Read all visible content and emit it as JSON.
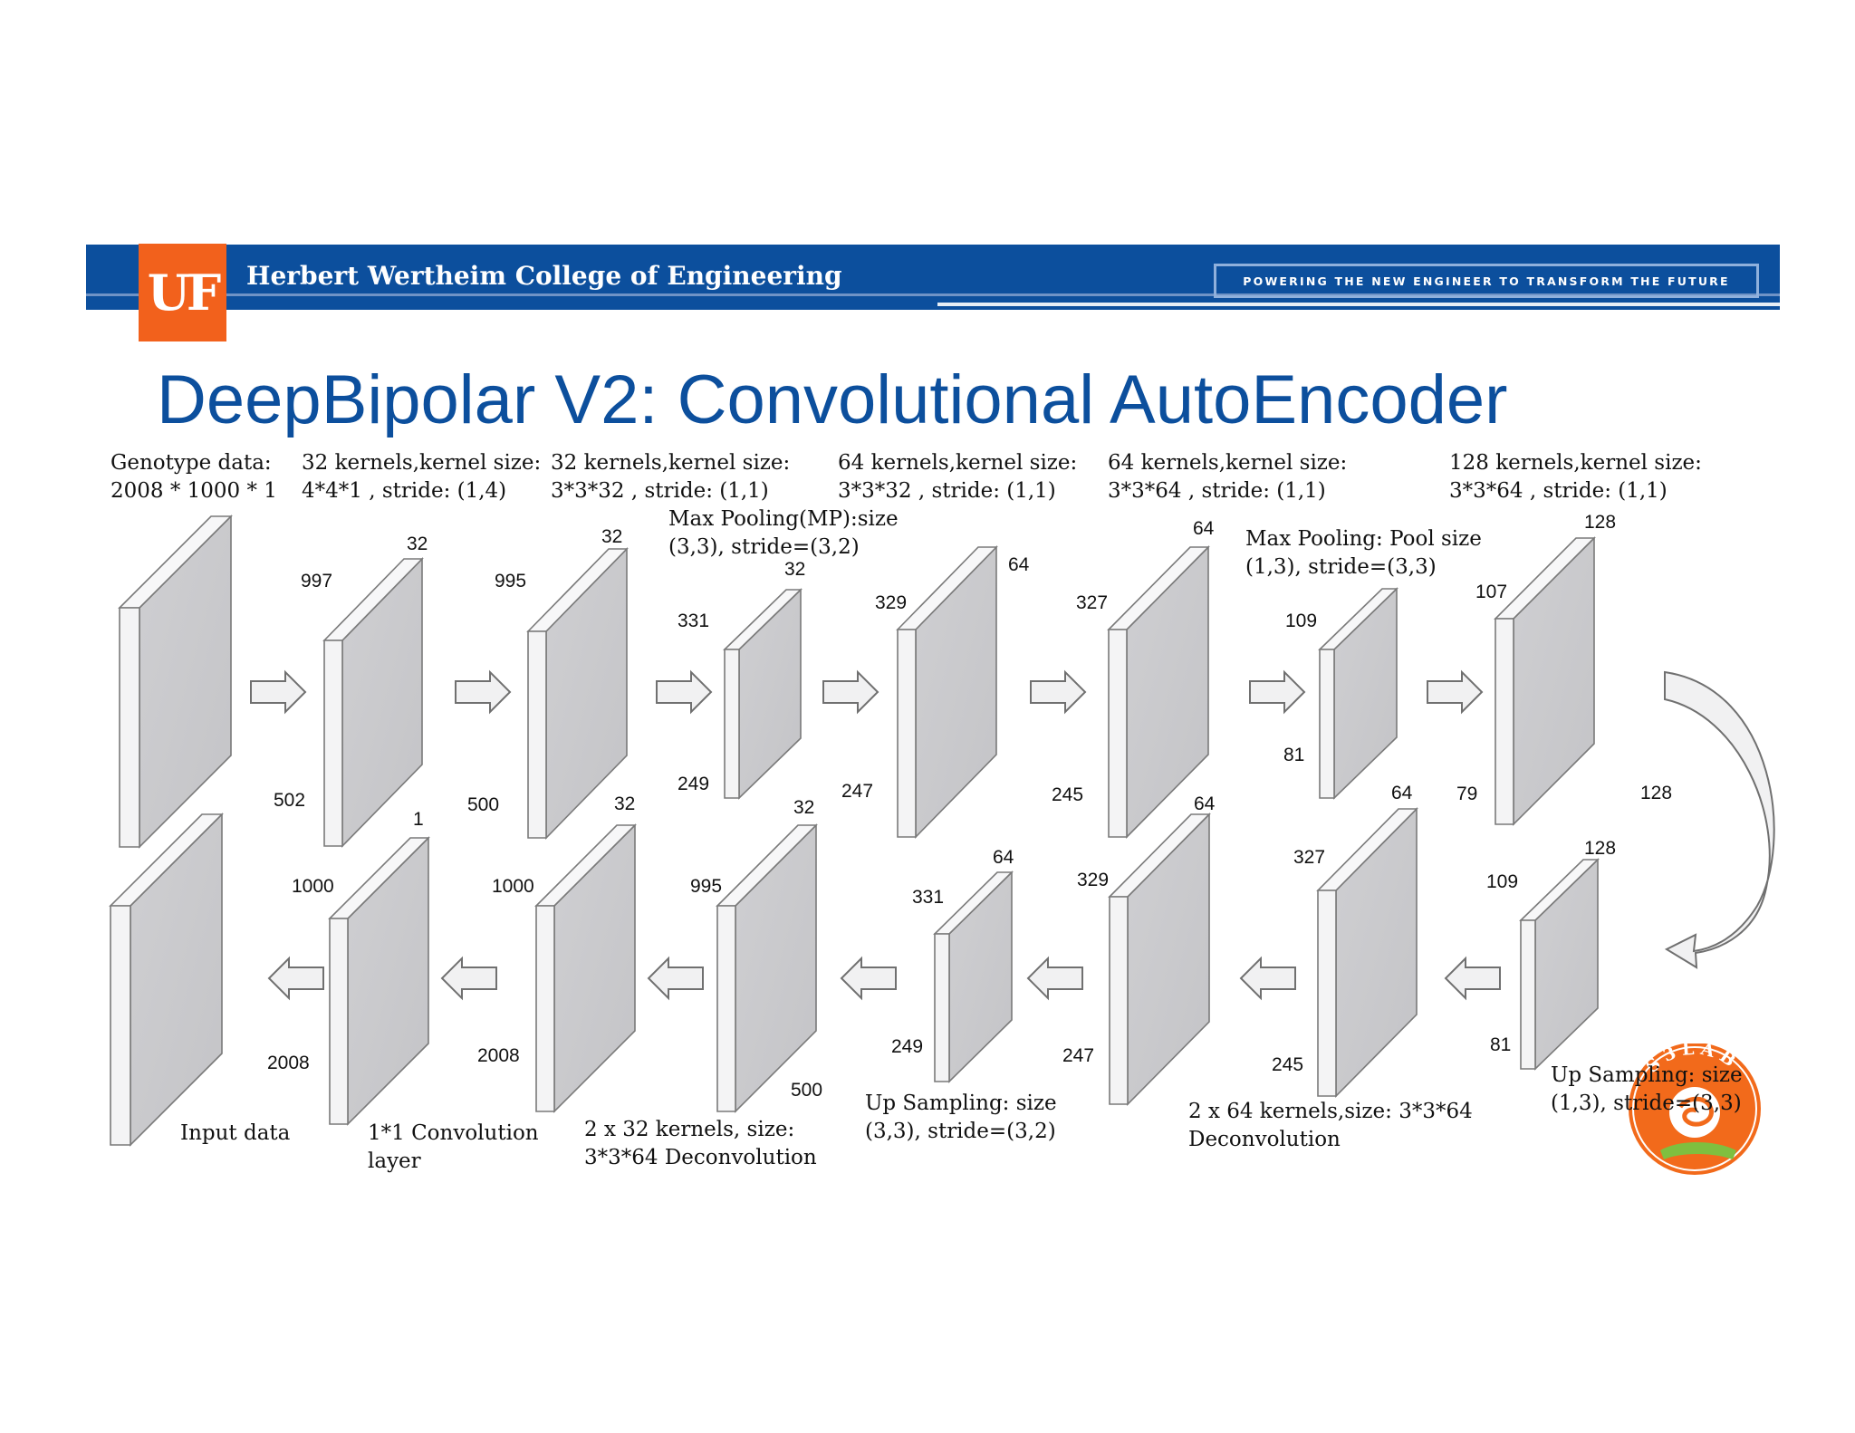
{
  "header": {
    "logo_text": "UF",
    "college": "Herbert Wertheim College of Engineering",
    "tagline": "POWERING THE NEW ENGINEER TO TRANSFORM THE FUTURE"
  },
  "title": "DeepBipolar V2: Convolutional AutoEncoder",
  "encoder_labels": {
    "genotype": "Genotype data:\n2008 * 1000 * 1",
    "conv1": "32 kernels,kernel size:\n4*4*1 , stride: (1,4)",
    "conv2": "32 kernels,kernel size:\n3*3*32 , stride: (1,1)",
    "pool1": "Max Pooling(MP):size\n(3,3), stride=(3,2)",
    "conv3": "64 kernels,kernel size:\n3*3*32 , stride: (1,1)",
    "conv4": "64 kernels,kernel size:\n3*3*64 , stride: (1,1)",
    "pool2": "Max Pooling: Pool size\n(1,3), stride=(3,3)",
    "conv5": "128 kernels,kernel size:\n3*3*64 , stride: (1,1)"
  },
  "decoder_labels": {
    "input": "Input data",
    "conv11": "1*1 Convolution\nlayer",
    "deconv32": "2 x 32 kernels, size:\n3*3*64 Deconvolution",
    "up1": "Up Sampling: size\n(3,3), stride=(3,2)",
    "deconv64": "2 x 64 kernels,size: 3*3*64\nDeconvolution",
    "up2": "Up Sampling: size\n(1,3), stride=(3,3)"
  },
  "dims": {
    "e1_d": "32",
    "e1_w": "997",
    "e1_h": "502",
    "e2_d": "32",
    "e2_w": "995",
    "e2_h": "500",
    "e3_d": "32",
    "e3_w": "331",
    "e3_h": "249",
    "e4_d": "64",
    "e4_w": "329",
    "e4_h": "247",
    "e5_d": "64",
    "e5_w": "327",
    "e5_h": "245",
    "e6_w": "109",
    "e6_h": "81",
    "e7_d": "128",
    "e7_w": "107",
    "e7_h": "79",
    "turn": "128",
    "d1_d": "1",
    "d1_w": "1000",
    "d1_h": "2008",
    "d2_d": "32",
    "d2_w": "1000",
    "d2_h": "2008",
    "d3_d": "32",
    "d3_w": "995",
    "d3_h": "500",
    "d4_d": "64",
    "d4_w": "331",
    "d4_h": "249",
    "d5_d": "64",
    "d5_w": "329",
    "d5_h": "247",
    "d6_d": "64",
    "d6_w": "327",
    "d6_h": "245",
    "d7_d": "128",
    "d7_w": "109",
    "d7_h": "81"
  },
  "lab_logo": {
    "text": "S3LAB"
  },
  "colors": {
    "banner": "#0c4f9d",
    "uf_orange": "#f2611c",
    "title": "#0c4f9d",
    "lab": "#f26a1b"
  }
}
